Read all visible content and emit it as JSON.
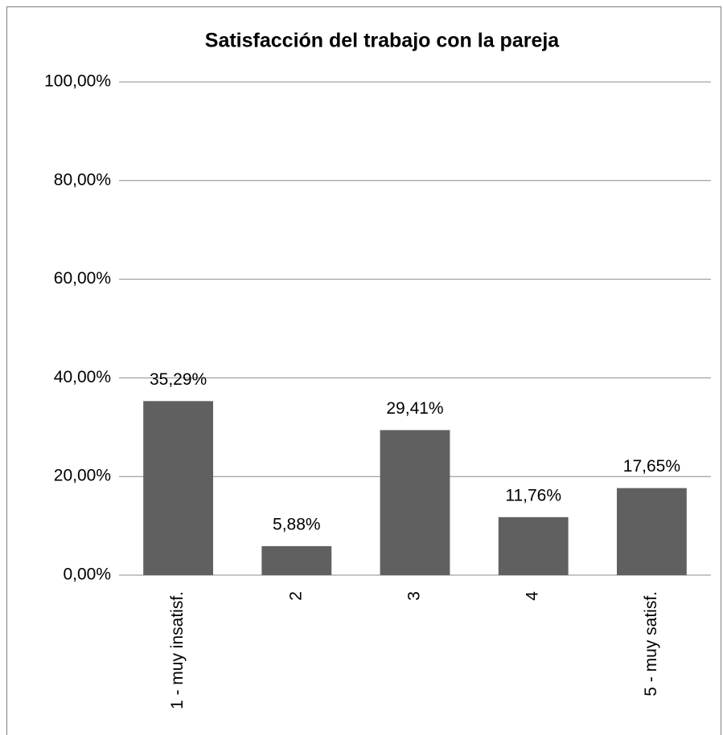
{
  "chart_data": {
    "type": "bar",
    "title": "Satisfacción del  trabajo con la pareja",
    "categories": [
      "1 - muy insatisf.",
      "2",
      "3",
      "4",
      "5 - muy satisf."
    ],
    "values": [
      35.29,
      5.88,
      29.41,
      11.76,
      17.65
    ],
    "value_labels": [
      "35,29%",
      "5,88%",
      "29,41%",
      "11,76%",
      "17,65%"
    ],
    "color": "#606060",
    "ylim": [
      0,
      100
    ],
    "yticks": [
      {
        "value": 0,
        "label": "0,00%"
      },
      {
        "value": 20,
        "label": "20,00%"
      },
      {
        "value": 40,
        "label": "40,00%"
      },
      {
        "value": 60,
        "label": "60,00%"
      },
      {
        "value": 80,
        "label": "80,00%"
      },
      {
        "value": 100,
        "label": "100,00%"
      }
    ],
    "grid": true
  }
}
